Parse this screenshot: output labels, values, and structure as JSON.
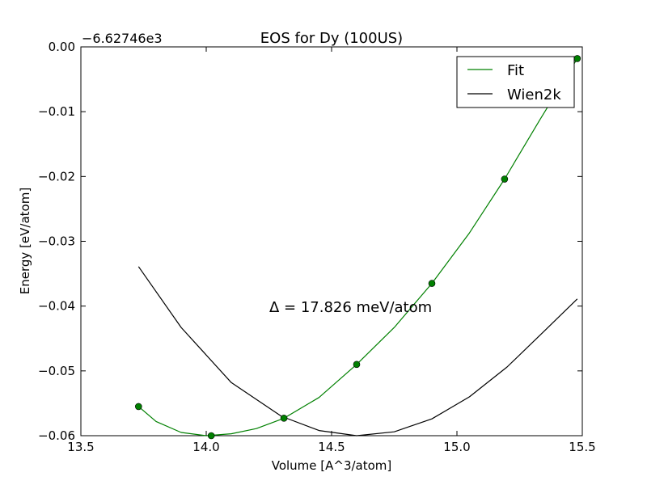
{
  "chart_data": {
    "type": "line",
    "title": "EOS for Dy (100US)",
    "xlabel": "Volume [A^3/atom]",
    "ylabel": "Energy [eV/atom]",
    "offset_label": "−6.62746e3",
    "xlim": [
      13.5,
      15.5
    ],
    "ylim": [
      -0.06,
      0.0
    ],
    "xticks": [
      13.5,
      14.0,
      14.5,
      15.0,
      15.5
    ],
    "xtick_labels": [
      "13.5",
      "14.0",
      "14.5",
      "15.0",
      "15.5"
    ],
    "yticks": [
      0.0,
      -0.01,
      -0.02,
      -0.03,
      -0.04,
      -0.05,
      -0.06
    ],
    "ytick_labels": [
      "0.00",
      "−0.01",
      "−0.02",
      "−0.03",
      "−0.04",
      "−0.05",
      "−0.06"
    ],
    "grid": false,
    "legend_position": "top-right",
    "annotation": "Δ = 17.826 meV/atom",
    "series": [
      {
        "name": "Fit",
        "color": "#008000",
        "style": "line",
        "x": [
          13.73,
          13.8,
          13.9,
          14.0,
          14.1,
          14.2,
          14.31,
          14.45,
          14.6,
          14.75,
          14.9,
          15.05,
          15.19,
          15.33,
          15.48
        ],
        "y": [
          -0.0555,
          -0.0578,
          -0.0595,
          -0.06,
          -0.0597,
          -0.0589,
          -0.0573,
          -0.0541,
          -0.049,
          -0.0433,
          -0.0365,
          -0.0287,
          -0.0204,
          -0.0113,
          -0.0018
        ]
      },
      {
        "name": "Wien2k",
        "color": "#000000",
        "style": "line",
        "x": [
          13.73,
          13.9,
          14.1,
          14.3,
          14.45,
          14.6,
          14.75,
          14.9,
          15.05,
          15.2,
          15.35,
          15.48
        ],
        "y": [
          -0.0339,
          -0.0433,
          -0.0518,
          -0.057,
          -0.0592,
          -0.06,
          -0.0594,
          -0.0574,
          -0.054,
          -0.0494,
          -0.0438,
          -0.0389
        ]
      },
      {
        "color": "#008000",
        "style": "markers",
        "x": [
          13.73,
          14.02,
          14.31,
          14.6,
          14.9,
          15.19,
          15.48
        ],
        "y": [
          -0.0555,
          -0.06,
          -0.0573,
          -0.049,
          -0.0365,
          -0.0204,
          -0.0018
        ]
      }
    ]
  }
}
